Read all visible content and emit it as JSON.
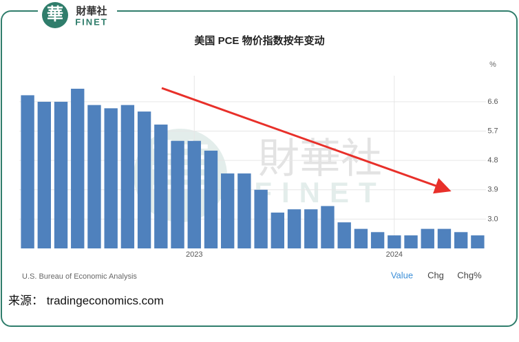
{
  "logo": {
    "mark": "華",
    "name": "財華社",
    "latin": "FINET"
  },
  "chart_data": {
    "type": "bar",
    "title": "美国 PCE 物价指数按年变动",
    "unit": "%",
    "categories": [
      null,
      null,
      null,
      null,
      null,
      null,
      null,
      null,
      null,
      null,
      "2023",
      null,
      null,
      null,
      null,
      null,
      null,
      null,
      null,
      null,
      null,
      null,
      "2024",
      null,
      null,
      null,
      null,
      null
    ],
    "values": [
      6.8,
      6.6,
      6.6,
      7.0,
      6.5,
      6.4,
      6.5,
      6.3,
      5.9,
      5.4,
      5.4,
      5.1,
      4.4,
      4.4,
      3.9,
      3.2,
      3.3,
      3.3,
      3.4,
      2.9,
      2.7,
      2.6,
      2.5,
      2.5,
      2.7,
      2.7,
      2.6,
      2.5
    ],
    "color": "#4f81bd",
    "ylim": [
      2.1,
      7.4
    ],
    "yticks": [
      {
        "value": 3,
        "label": "3.0"
      },
      3.9,
      4.8,
      5.7,
      6.6
    ],
    "grid": true,
    "source": "U.S. Bureau of Economic Analysis",
    "tabs": [
      "Value",
      "Chg",
      "Chg%"
    ]
  },
  "footer": "来源： tradingeconomics.com"
}
